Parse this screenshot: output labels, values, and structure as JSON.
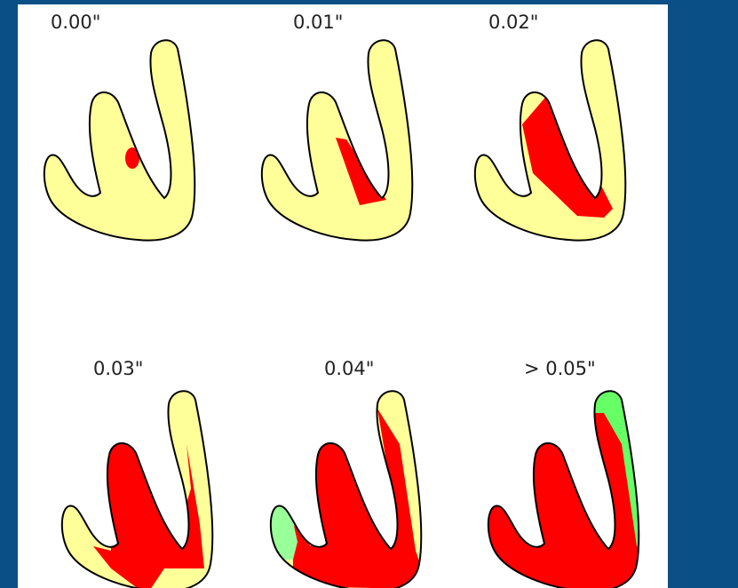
{
  "panels": [
    {
      "label": "0.00\""
    },
    {
      "label": "0.01\""
    },
    {
      "label": "0.02\""
    },
    {
      "label": "0.03\""
    },
    {
      "label": "0.04\""
    },
    {
      "label": "> 0.05\""
    }
  ]
}
